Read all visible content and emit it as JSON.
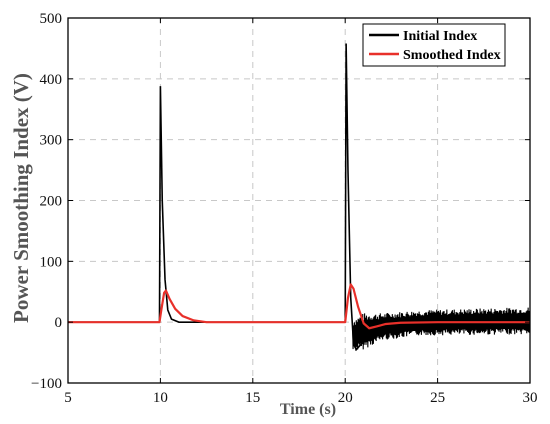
{
  "chart_data": {
    "type": "line",
    "title": "",
    "xlabel": "Time (s)",
    "ylabel": "Power Smoothing Index (V)",
    "xlim": [
      5,
      30
    ],
    "ylim": [
      -100,
      500
    ],
    "xticks": [
      5,
      10,
      15,
      20,
      25,
      30
    ],
    "yticks": [
      -100,
      0,
      100,
      200,
      300,
      400,
      500
    ],
    "xtick_labels": [
      "5",
      "10",
      "15",
      "20",
      "25",
      "30"
    ],
    "ytick_labels": [
      "−100",
      "0",
      "100",
      "200",
      "300",
      "400",
      "500"
    ],
    "grid": true,
    "legend_position": "top-right",
    "series": [
      {
        "name": "Initial Index",
        "color": "#000000",
        "points": [
          [
            5,
            0
          ],
          [
            9.95,
            0
          ],
          [
            10.0,
            388
          ],
          [
            10.1,
            200
          ],
          [
            10.25,
            70
          ],
          [
            10.4,
            20
          ],
          [
            10.6,
            5
          ],
          [
            11.0,
            0
          ],
          [
            20.0,
            0
          ],
          [
            20.05,
            458
          ],
          [
            20.15,
            250
          ],
          [
            20.3,
            40
          ],
          [
            20.45,
            -35
          ],
          [
            20.6,
            -45
          ],
          [
            20.9,
            -35
          ],
          [
            21.3,
            -25
          ],
          [
            22,
            -18
          ],
          [
            23,
            -15
          ],
          [
            25,
            -10
          ],
          [
            30,
            -10
          ]
        ],
        "noise_band": {
          "x_start": 20.4,
          "x_end": 30,
          "upper": [
            [
              20.4,
              5
            ],
            [
              21,
              15
            ],
            [
              22,
              15
            ],
            [
              24,
              20
            ],
            [
              30,
              25
            ]
          ],
          "lower": [
            [
              20.4,
              -50
            ],
            [
              21,
              -45
            ],
            [
              22,
              -30
            ],
            [
              24,
              -22
            ],
            [
              30,
              -20
            ]
          ]
        }
      },
      {
        "name": "Smoothed Index",
        "color": "#e8302a",
        "points": [
          [
            5,
            0
          ],
          [
            9.95,
            0
          ],
          [
            10.05,
            20
          ],
          [
            10.2,
            48
          ],
          [
            10.3,
            52
          ],
          [
            10.5,
            38
          ],
          [
            10.8,
            22
          ],
          [
            11.2,
            10
          ],
          [
            11.8,
            3
          ],
          [
            12.5,
            0
          ],
          [
            20.0,
            0
          ],
          [
            20.15,
            40
          ],
          [
            20.3,
            62
          ],
          [
            20.45,
            55
          ],
          [
            20.7,
            25
          ],
          [
            21.0,
            -2
          ],
          [
            21.3,
            -10
          ],
          [
            21.7,
            -7
          ],
          [
            22.2,
            -3
          ],
          [
            23,
            -1
          ],
          [
            25,
            0
          ],
          [
            30,
            0
          ]
        ]
      }
    ]
  }
}
